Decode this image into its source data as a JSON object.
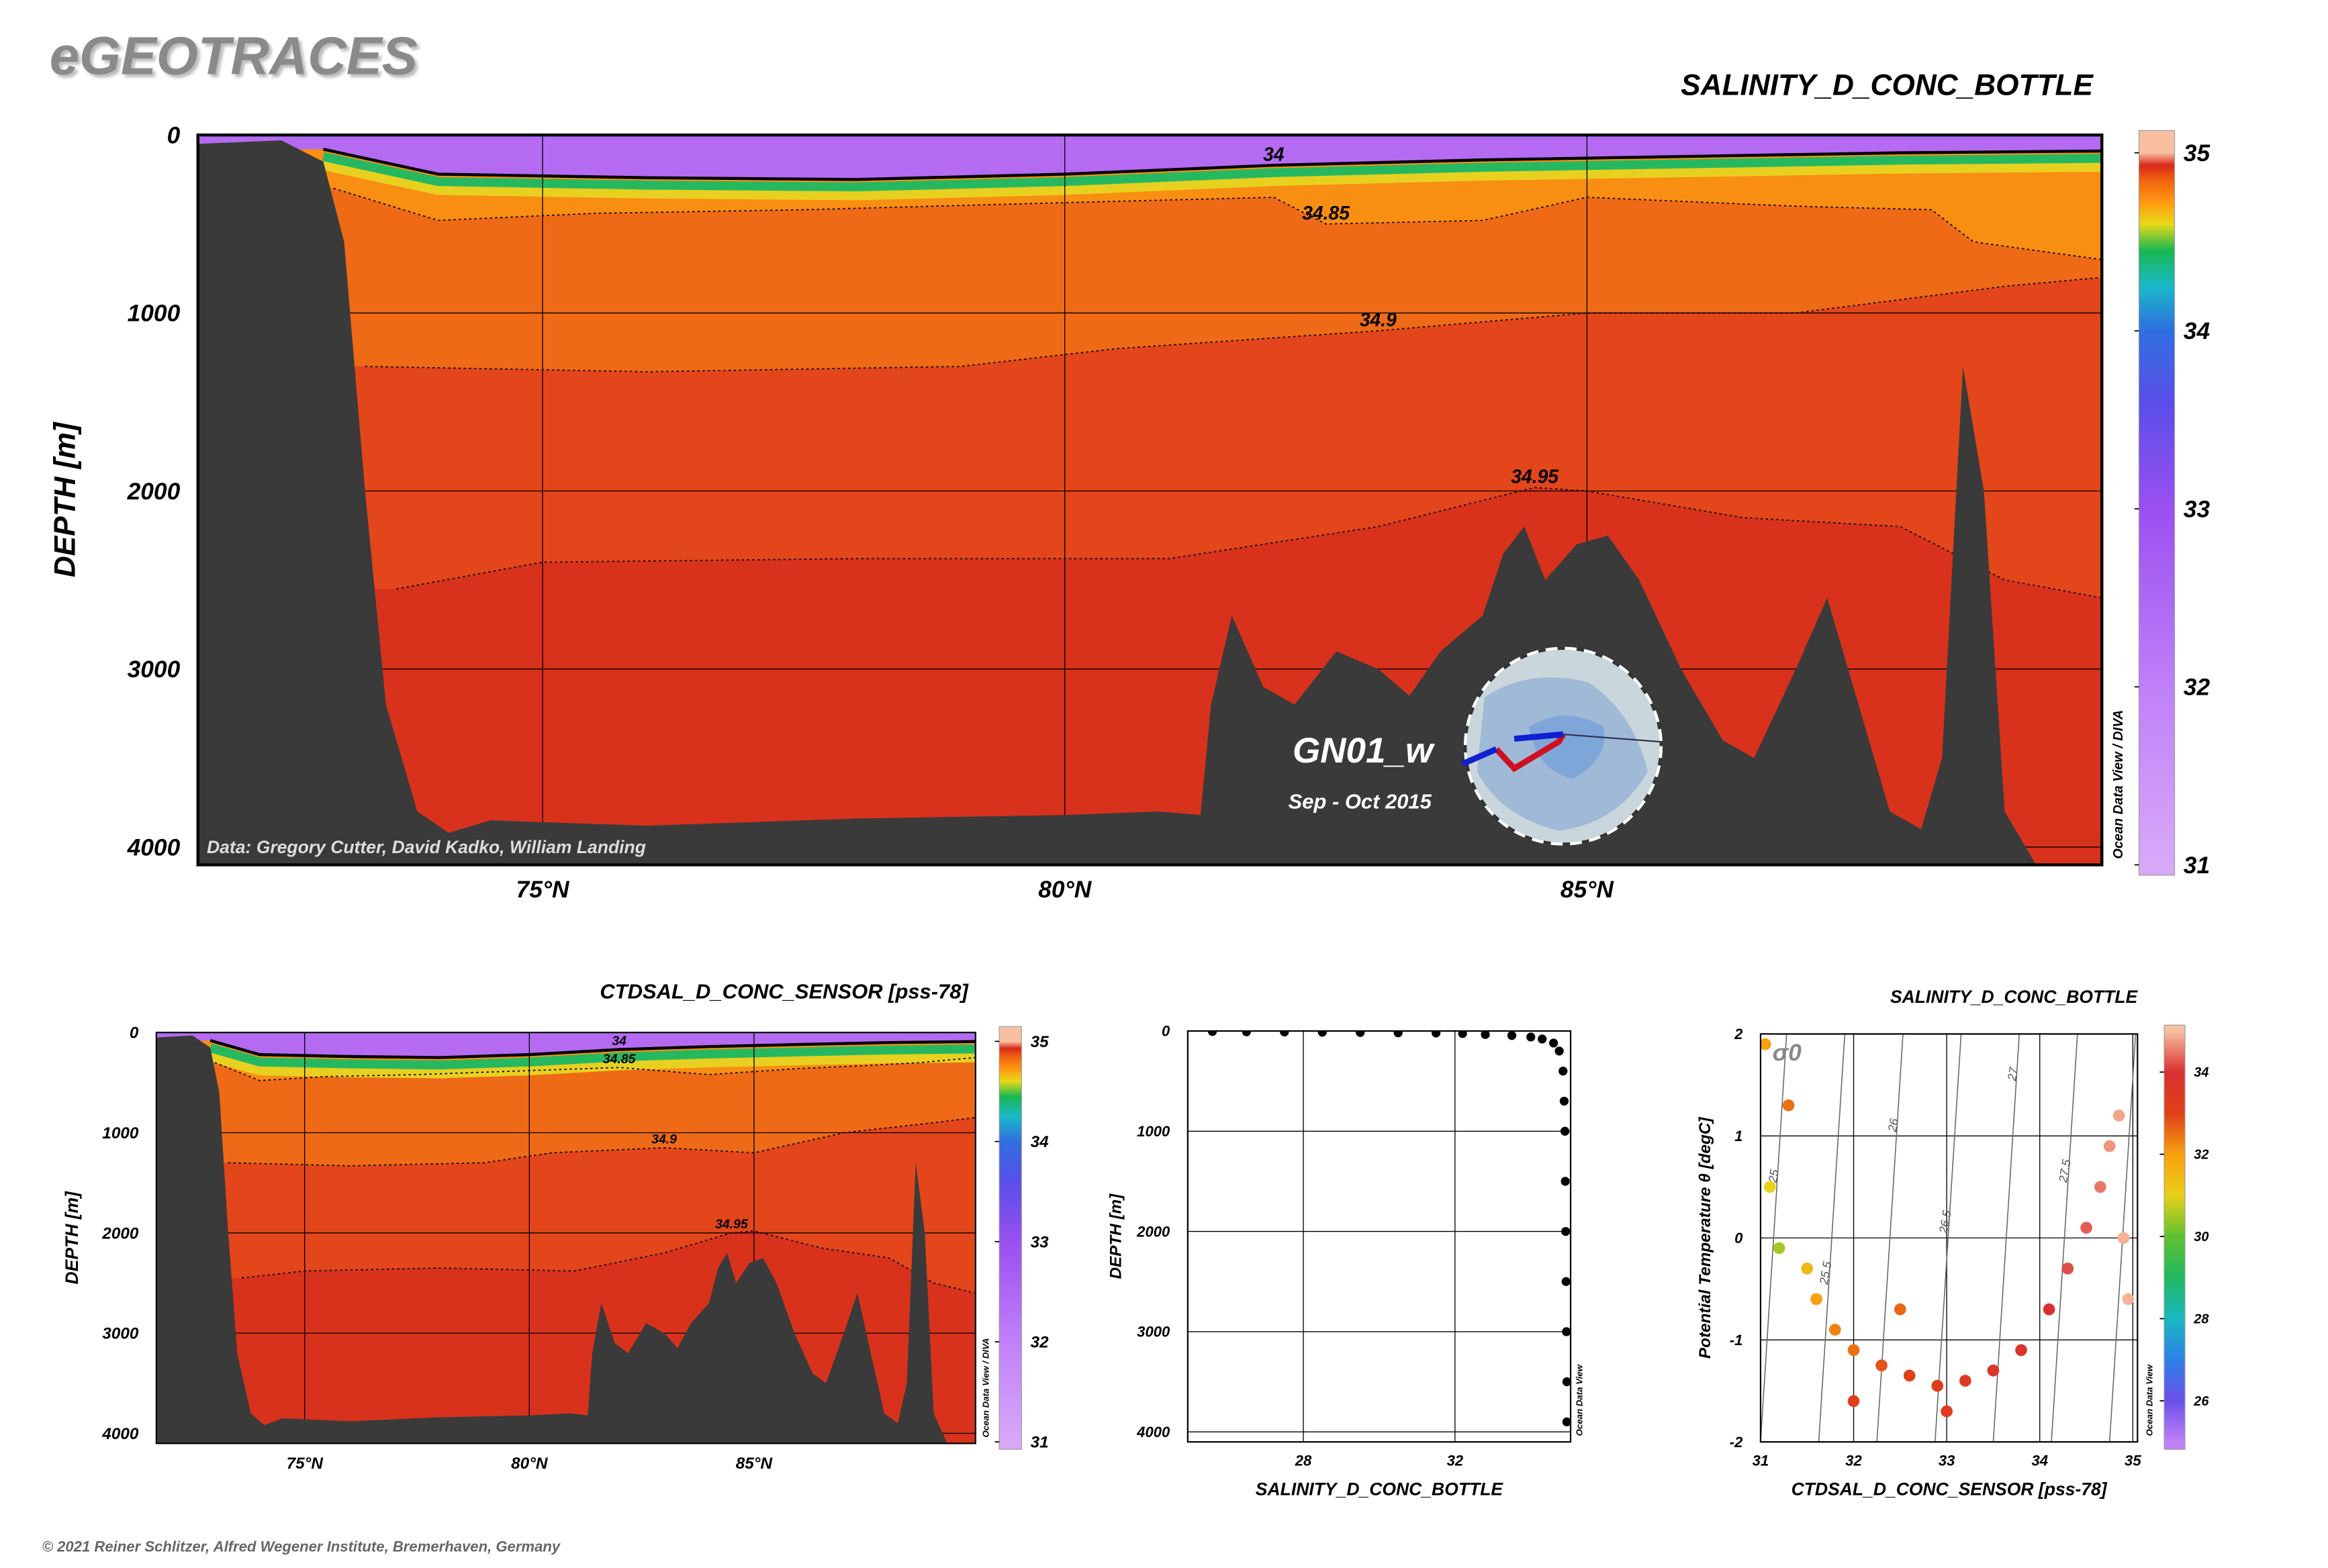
{
  "header": {
    "logo": "eGEOTRACES",
    "copyright": "© 2021 Reiner Schlitzer, Alfred Wegener Institute, Bremerhaven, Germany"
  },
  "chart_data": [
    {
      "type": "section",
      "title": "SALINITY_D_CONC_BOTTLE",
      "y_label": "DEPTH [m]",
      "xlim": [
        71.7,
        89.93
      ],
      "xticks": [
        {
          "value": 75,
          "label": "75°N"
        },
        {
          "value": 80,
          "label": "80°N"
        },
        {
          "value": 85,
          "label": "85°N"
        }
      ],
      "ylim": [
        0,
        4100
      ],
      "yticks": [
        0,
        1000,
        2000,
        3000,
        4000
      ],
      "y_inverted": true,
      "grid": true,
      "colorbar": {
        "lim": [
          31,
          35
        ],
        "ticks": [
          31,
          32,
          33,
          34,
          35
        ],
        "colorscale": [
          [
            31,
            "#d8a8f8"
          ],
          [
            32,
            "#c080f8"
          ],
          [
            33,
            "#9a50f0"
          ],
          [
            33.6,
            "#5a4ee8"
          ],
          [
            34,
            "#2f6fe0"
          ],
          [
            34.25,
            "#1ab8c8"
          ],
          [
            34.45,
            "#18b850"
          ],
          [
            34.6,
            "#e8d818"
          ],
          [
            34.72,
            "#ff9a10"
          ],
          [
            34.85,
            "#f06010"
          ],
          [
            34.93,
            "#d8281a"
          ],
          [
            35,
            "#f8c0a0"
          ]
        ]
      },
      "deep_color": "#d8321c",
      "contours": [
        {
          "level": 34,
          "style": "solid",
          "fill_above": "#b56af2",
          "x": [
            72.9,
            74,
            76,
            78,
            80,
            82,
            84,
            86,
            88,
            89.93
          ],
          "values": [
            80,
            220,
            240,
            250,
            220,
            170,
            140,
            120,
            100,
            90
          ]
        },
        {
          "level": 34.85,
          "style": "dotted",
          "fill_above": "#f88e12",
          "x": [
            73,
            74,
            75.5,
            77.5,
            80,
            82,
            82.5,
            84,
            85,
            87,
            88.3,
            88.7,
            89.93
          ],
          "values": [
            300,
            480,
            440,
            420,
            380,
            350,
            500,
            480,
            350,
            400,
            420,
            600,
            700
          ]
        },
        {
          "level": 34.9,
          "style": "dotted",
          "fill_above": "#ee6a16",
          "x": [
            73.3,
            76,
            79,
            80.5,
            83,
            85,
            87,
            89,
            89.93
          ],
          "values": [
            1300,
            1330,
            1300,
            1200,
            1100,
            1000,
            1000,
            850,
            800
          ]
        },
        {
          "level": 34.95,
          "style": "dotted",
          "fill_above": "#e2461a",
          "x": [
            73.6,
            75,
            78,
            81,
            83,
            84.5,
            85,
            86.5,
            88,
            89,
            89.93
          ],
          "values": [
            2550,
            2400,
            2380,
            2380,
            2200,
            1980,
            2000,
            2150,
            2200,
            2500,
            2600
          ]
        }
      ],
      "bathymetry": {
        "color": "#3a3a3a",
        "x": [
          71.7,
          72.5,
          72.9,
          73.1,
          73.3,
          73.5,
          73.8,
          74.1,
          74.5,
          76,
          78,
          80,
          80.9,
          81.3,
          81.4,
          81.6,
          81.9,
          82.2,
          82.6,
          83,
          83.3,
          83.6,
          84,
          84.2,
          84.4,
          84.6,
          84.9,
          85.2,
          85.5,
          85.9,
          86.3,
          86.6,
          87,
          87.3,
          87.6,
          87.9,
          88.2,
          88.4,
          88.6,
          88.8,
          89,
          89.3
        ],
        "values": [
          50,
          30,
          150,
          600,
          2000,
          3200,
          3800,
          3920,
          3850,
          3880,
          3840,
          3820,
          3800,
          3820,
          3200,
          2700,
          3100,
          3200,
          2900,
          3000,
          3150,
          2900,
          2700,
          2350,
          2200,
          2500,
          2300,
          2250,
          2500,
          3000,
          3400,
          3500,
          3000,
          2600,
          3200,
          3800,
          3900,
          3500,
          1300,
          2000,
          3800,
          4100
        ]
      },
      "annotations": {
        "credit": "Data: Gregory Cutter, David Kadko, William Landing",
        "cruise": "GN01_w",
        "period": "Sep - Oct 2015",
        "software": "Ocean Data View / DIVA"
      }
    },
    {
      "type": "section",
      "title": "CTDSAL_D_CONC_SENSOR [pss-78]",
      "y_label": "DEPTH [m]",
      "xlim": [
        71.7,
        89.93
      ],
      "xticks": [
        {
          "value": 75,
          "label": "75°N"
        },
        {
          "value": 80,
          "label": "80°N"
        },
        {
          "value": 85,
          "label": "85°N"
        }
      ],
      "ylim": [
        0,
        4100
      ],
      "yticks": [
        0,
        1000,
        2000,
        3000,
        4000
      ],
      "y_inverted": true,
      "grid": true,
      "colorbar": {
        "lim": [
          31,
          35
        ],
        "ticks": [
          31,
          32,
          33,
          34,
          35
        ],
        "colorscale": [
          [
            31,
            "#d8a8f8"
          ],
          [
            32,
            "#c080f8"
          ],
          [
            33,
            "#9a50f0"
          ],
          [
            33.6,
            "#5a4ee8"
          ],
          [
            34,
            "#2f6fe0"
          ],
          [
            34.25,
            "#1ab8c8"
          ],
          [
            34.45,
            "#18b850"
          ],
          [
            34.6,
            "#e8d818"
          ],
          [
            34.72,
            "#ff9a10"
          ],
          [
            34.85,
            "#f06010"
          ],
          [
            34.93,
            "#d8281a"
          ],
          [
            35,
            "#f8c0a0"
          ]
        ]
      },
      "deep_color": "#d8321c",
      "contours": [
        {
          "level": 34,
          "style": "solid",
          "fill_above": "#b56af2",
          "x": [
            72.9,
            74,
            76,
            78,
            80,
            82,
            84,
            86,
            88,
            89.93
          ],
          "values": [
            80,
            220,
            240,
            250,
            220,
            170,
            140,
            120,
            100,
            90
          ]
        },
        {
          "level": 34.85,
          "style": "dotted",
          "fill_above": "#f88e12",
          "x": [
            73,
            74,
            75.5,
            77.5,
            80,
            82,
            84,
            86,
            87.5,
            88.7,
            89.93
          ],
          "values": [
            300,
            480,
            440,
            420,
            380,
            350,
            420,
            360,
            330,
            300,
            250
          ]
        },
        {
          "level": 34.9,
          "style": "dotted",
          "fill_above": "#ee6a16",
          "x": [
            73.3,
            76,
            79,
            80.5,
            83,
            85,
            87,
            89,
            89.93
          ],
          "values": [
            1300,
            1330,
            1300,
            1200,
            1150,
            1200,
            1000,
            900,
            850
          ]
        },
        {
          "level": 34.95,
          "style": "dotted",
          "fill_above": "#e2461a",
          "x": [
            73.6,
            75,
            78,
            81,
            83,
            84.5,
            85,
            86.5,
            88,
            89,
            89.93
          ],
          "values": [
            2450,
            2380,
            2350,
            2380,
            2200,
            2000,
            1980,
            2150,
            2250,
            2500,
            2600
          ]
        }
      ],
      "bathymetry": {
        "color": "#3a3a3a",
        "x": [
          71.7,
          72.5,
          72.9,
          73.1,
          73.3,
          73.5,
          73.8,
          74.1,
          74.5,
          76,
          78,
          80,
          80.9,
          81.3,
          81.4,
          81.6,
          81.9,
          82.2,
          82.6,
          83,
          83.3,
          83.6,
          84,
          84.2,
          84.4,
          84.6,
          84.9,
          85.2,
          85.5,
          85.9,
          86.3,
          86.6,
          87,
          87.3,
          87.6,
          87.9,
          88.2,
          88.4,
          88.6,
          88.8,
          89,
          89.3
        ],
        "values": [
          50,
          30,
          150,
          600,
          2000,
          3200,
          3800,
          3920,
          3850,
          3880,
          3840,
          3820,
          3800,
          3820,
          3200,
          2700,
          3100,
          3200,
          2900,
          3000,
          3150,
          2900,
          2700,
          2350,
          2200,
          2500,
          2300,
          2250,
          2500,
          3000,
          3400,
          3500,
          3000,
          2600,
          3200,
          3800,
          3900,
          3500,
          1300,
          2000,
          3800,
          4100
        ]
      },
      "annotations": {
        "software": "Ocean Data View / DIVA"
      }
    },
    {
      "type": "scatter",
      "x_label": "SALINITY_D_CONC_BOTTLE",
      "y_label": "DEPTH [m]",
      "xlim": [
        24.95,
        35.05
      ],
      "xticks": [
        28,
        32
      ],
      "ylim": [
        0,
        4100
      ],
      "yticks": [
        0,
        1000,
        2000,
        3000,
        4000
      ],
      "y_inverted": true,
      "grid": true,
      "color": "#000000",
      "x": [
        25.6,
        26.5,
        27.5,
        28.5,
        29.5,
        30.5,
        31.5,
        32.2,
        32.8,
        33.5,
        34.0,
        34.3,
        34.6,
        34.75,
        34.85,
        34.88,
        34.9,
        34.91,
        34.92,
        34.93,
        34.94,
        34.95,
        34.95
      ],
      "values": [
        5,
        8,
        10,
        12,
        15,
        18,
        20,
        25,
        35,
        45,
        60,
        80,
        120,
        200,
        400,
        700,
        1000,
        1500,
        2000,
        2500,
        3000,
        3500,
        3900
      ],
      "annotations": {
        "software": "Ocean Data View"
      }
    },
    {
      "type": "scatter",
      "title": "SALINITY_D_CONC_BOTTLE",
      "x_label": "CTDSAL_D_CONC_SENSOR [pss-78]",
      "y_label": "Potential Temperature θ [degC]",
      "xlim": [
        31,
        35.05
      ],
      "xticks": [
        31,
        32,
        33,
        34,
        35
      ],
      "ylim": [
        -2,
        2
      ],
      "yticks": [
        -2,
        -1,
        0,
        1,
        2
      ],
      "y_inverted": false,
      "grid": true,
      "x": [
        31.05,
        31.3,
        31.1,
        31.2,
        31.5,
        31.6,
        31.8,
        32.0,
        32.3,
        32.6,
        32.9,
        33.2,
        33.5,
        33.8,
        34.1,
        34.3,
        34.5,
        34.65,
        34.75,
        34.85,
        34.9,
        34.95,
        33.0,
        32.0,
        32.5
      ],
      "values": [
        1.9,
        1.3,
        0.5,
        -0.1,
        -0.3,
        -0.6,
        -0.9,
        -1.1,
        -1.25,
        -1.35,
        -1.45,
        -1.4,
        -1.3,
        -1.1,
        -0.7,
        -0.3,
        0.1,
        0.5,
        0.9,
        1.2,
        0.0,
        -0.6,
        -1.7,
        -1.6,
        -0.7
      ],
      "color_values": [
        32,
        32.5,
        31,
        30.5,
        31.5,
        32,
        32.3,
        32.5,
        32.8,
        33,
        33.2,
        33.4,
        33.6,
        33.8,
        34,
        34.2,
        34.3,
        34.5,
        34.7,
        34.8,
        34.9,
        34.9,
        33.3,
        33,
        32.6
      ],
      "colorbar": {
        "lim": [
          25,
          35
        ],
        "ticks": [
          26,
          28,
          30,
          32,
          34
        ],
        "colorscale": [
          [
            25,
            "#c080f8"
          ],
          [
            26,
            "#6a50e8"
          ],
          [
            27,
            "#2f80e8"
          ],
          [
            28,
            "#18b8c0"
          ],
          [
            29,
            "#20b860"
          ],
          [
            30,
            "#60c030"
          ],
          [
            31,
            "#e8d018"
          ],
          [
            32,
            "#f8a010"
          ],
          [
            33,
            "#e04018"
          ],
          [
            34,
            "#d83030"
          ],
          [
            35,
            "#f8c0a0"
          ]
        ]
      },
      "isopycnals": {
        "label": "σ0",
        "levels": [
          25,
          25.5,
          26,
          26.5,
          27,
          27.5,
          28
        ]
      },
      "annotations": {
        "software": "Ocean Data View"
      }
    }
  ]
}
